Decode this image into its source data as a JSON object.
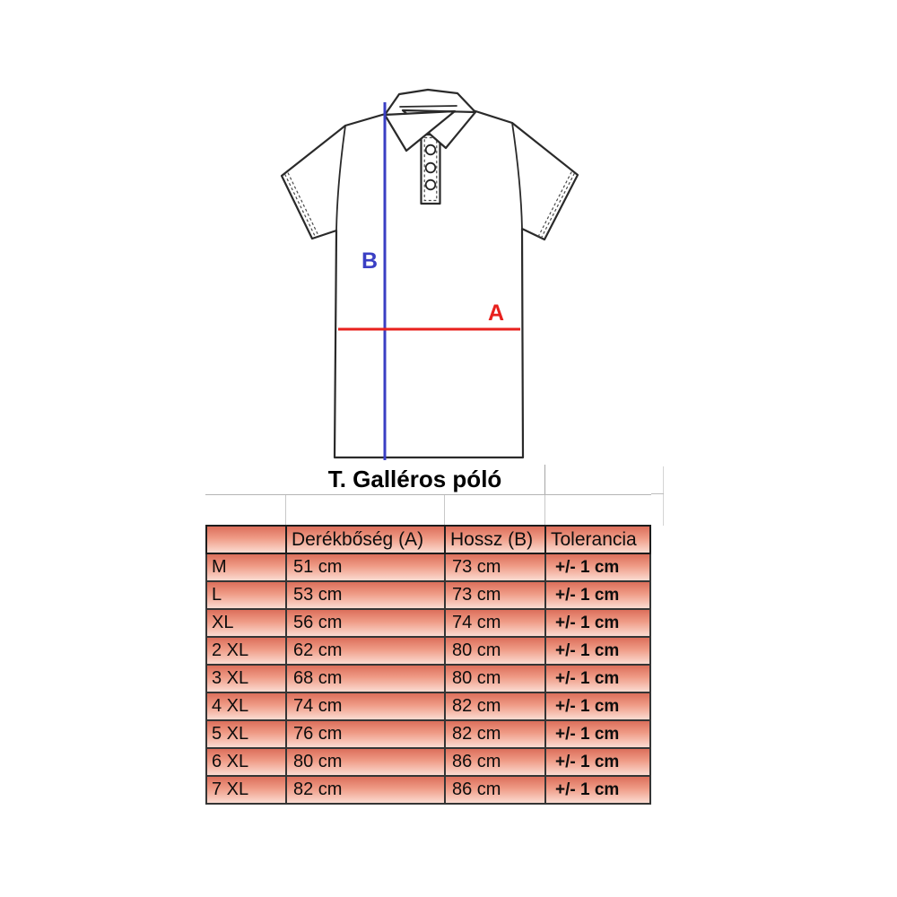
{
  "page": {
    "background": "#ffffff"
  },
  "diagram": {
    "label_a": "A",
    "label_b": "B",
    "line_a_color": "#e8201d",
    "line_b_color": "#3a3fc4",
    "outline_color": "#2a2a2a"
  },
  "table": {
    "title": "T. Galléros póló",
    "headers": [
      "",
      "Derékbőség (A)",
      "Hossz (B)",
      "Tolerancia"
    ],
    "cell_gradient": [
      "#dc6f5b",
      "#ef9b86",
      "#fbdbd1"
    ],
    "rows": [
      {
        "size": "M",
        "waist": "51 cm",
        "length": "73 cm",
        "tolerance": "+/- 1 cm"
      },
      {
        "size": "L",
        "waist": "53 cm",
        "length": "73 cm",
        "tolerance": "+/- 1 cm"
      },
      {
        "size": "XL",
        "waist": "56 cm",
        "length": "74 cm",
        "tolerance": "+/- 1 cm"
      },
      {
        "size": "2 XL",
        "waist": "62 cm",
        "length": "80 cm",
        "tolerance": "+/- 1 cm"
      },
      {
        "size": "3 XL",
        "waist": "68 cm",
        "length": "80 cm",
        "tolerance": "+/- 1 cm"
      },
      {
        "size": "4 XL",
        "waist": "74 cm",
        "length": "82 cm",
        "tolerance": "+/- 1 cm"
      },
      {
        "size": "5 XL",
        "waist": "76 cm",
        "length": "82 cm",
        "tolerance": "+/- 1 cm"
      },
      {
        "size": "6 XL",
        "waist": "80 cm",
        "length": "86 cm",
        "tolerance": "+/- 1 cm"
      },
      {
        "size": "7 XL",
        "waist": "82 cm",
        "length": "86 cm",
        "tolerance": "+/- 1 cm"
      }
    ]
  }
}
